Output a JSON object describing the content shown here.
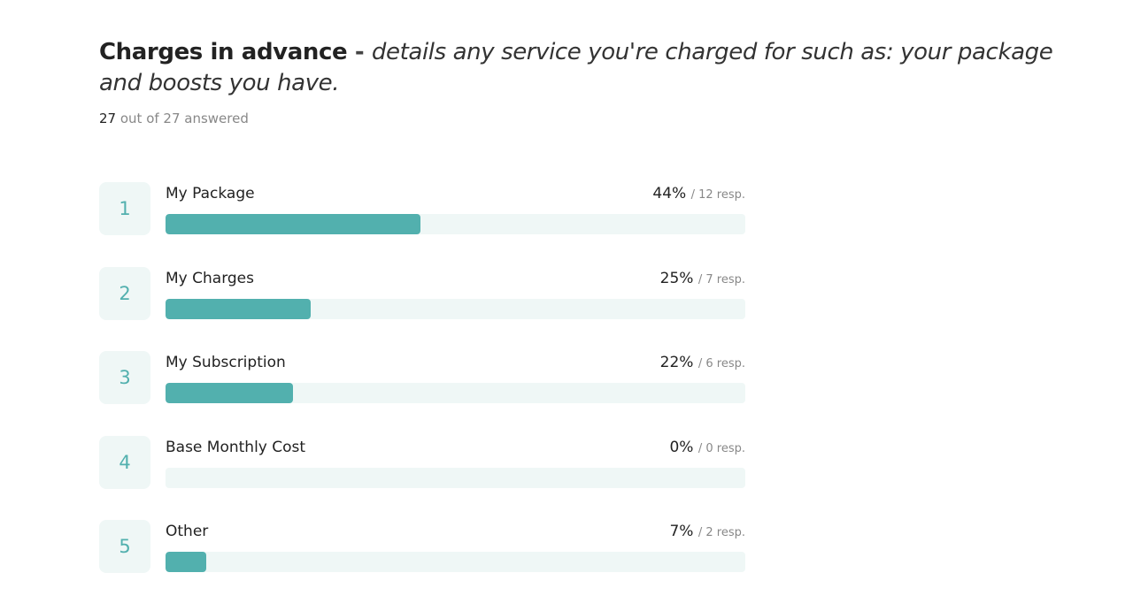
{
  "header": {
    "question": "Charges in advance",
    "separator": " - ",
    "description": "details any service you're charged for such as: your package and boosts you have.",
    "answered_count": "27",
    "answered_rest": " out of 27 answered"
  },
  "colors": {
    "accent": "#52b0ae",
    "track": "#eff7f6"
  },
  "chart_data": {
    "type": "bar",
    "orientation": "horizontal",
    "categories": [
      "My Package",
      "My Charges",
      "My Subscription",
      "Base Monthly Cost",
      "Other"
    ],
    "values": [
      44,
      25,
      22,
      0,
      7
    ],
    "responses": [
      12,
      7,
      6,
      0,
      2
    ],
    "ylim": [
      0,
      100
    ],
    "rows": [
      {
        "rank": "1",
        "label": "My Package",
        "percent": "44%",
        "resp": "/ 12 resp."
      },
      {
        "rank": "2",
        "label": "My Charges",
        "percent": "25%",
        "resp": "/ 7 resp."
      },
      {
        "rank": "3",
        "label": "My Subscription",
        "percent": "22%",
        "resp": "/ 6 resp."
      },
      {
        "rank": "4",
        "label": "Base Monthly Cost",
        "percent": "0%",
        "resp": "/ 0 resp."
      },
      {
        "rank": "5",
        "label": "Other",
        "percent": "7%",
        "resp": "/ 2 resp."
      }
    ]
  }
}
